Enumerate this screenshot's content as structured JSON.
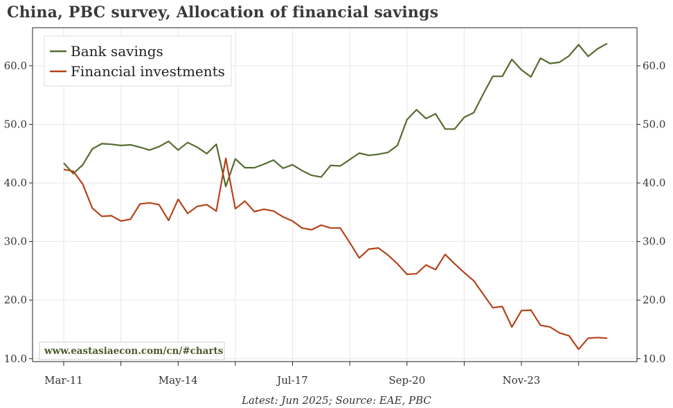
{
  "chart_data": {
    "type": "line",
    "title": "China, PBC survey, Allocation of financial savings",
    "source": "Latest: Jun 2025; Source: EAE, PBC",
    "watermark": "www.eastasiaecon.com/cn/#charts",
    "ylim": [
      9.5,
      66.5
    ],
    "yticks": [
      "10.0",
      "20.0",
      "30.0",
      "40.0",
      "50.0",
      "60.0"
    ],
    "xticks": [
      "Mar-11",
      "May-14",
      "Jul-17",
      "Sep-20",
      "Nov-23"
    ],
    "legend_position": "top-left",
    "colors": {
      "bank": "#556b2f",
      "invest": "#b5421a"
    },
    "series": [
      {
        "name": "Bank savings",
        "values": [
          43.4,
          41.6,
          43.1,
          45.8,
          46.7,
          46.6,
          46.4,
          46.5,
          46.1,
          45.6,
          46.2,
          47.1,
          45.6,
          46.9,
          46.1,
          45.0,
          46.6,
          39.4,
          44.1,
          42.6,
          42.6,
          43.2,
          43.9,
          42.5,
          43.1,
          42.1,
          41.3,
          41.0,
          43.0,
          42.9,
          44.0,
          45.1,
          44.7,
          44.9,
          45.2,
          46.4,
          50.8,
          52.5,
          51.0,
          51.8,
          49.2,
          49.2,
          51.2,
          52.0,
          55.2,
          58.2,
          58.2,
          61.1,
          59.3,
          58.1,
          61.3,
          60.4,
          60.6,
          61.7,
          63.6,
          61.6,
          62.9,
          63.8
        ]
      },
      {
        "name": "Financial investments",
        "values": [
          42.3,
          42.0,
          39.8,
          35.7,
          34.3,
          34.4,
          33.5,
          33.8,
          36.4,
          36.6,
          36.3,
          33.6,
          37.2,
          34.8,
          36.0,
          36.3,
          35.2,
          44.2,
          35.6,
          36.9,
          35.1,
          35.5,
          35.2,
          34.2,
          33.5,
          32.3,
          32.0,
          32.8,
          32.3,
          32.3,
          29.8,
          27.2,
          28.7,
          28.9,
          27.7,
          26.2,
          24.4,
          24.5,
          26.0,
          25.2,
          27.8,
          26.2,
          24.7,
          23.3,
          21.0,
          18.7,
          18.9,
          15.4,
          18.2,
          18.3,
          15.7,
          15.4,
          14.4,
          13.9,
          11.6,
          13.5,
          13.6,
          13.5
        ]
      }
    ]
  }
}
